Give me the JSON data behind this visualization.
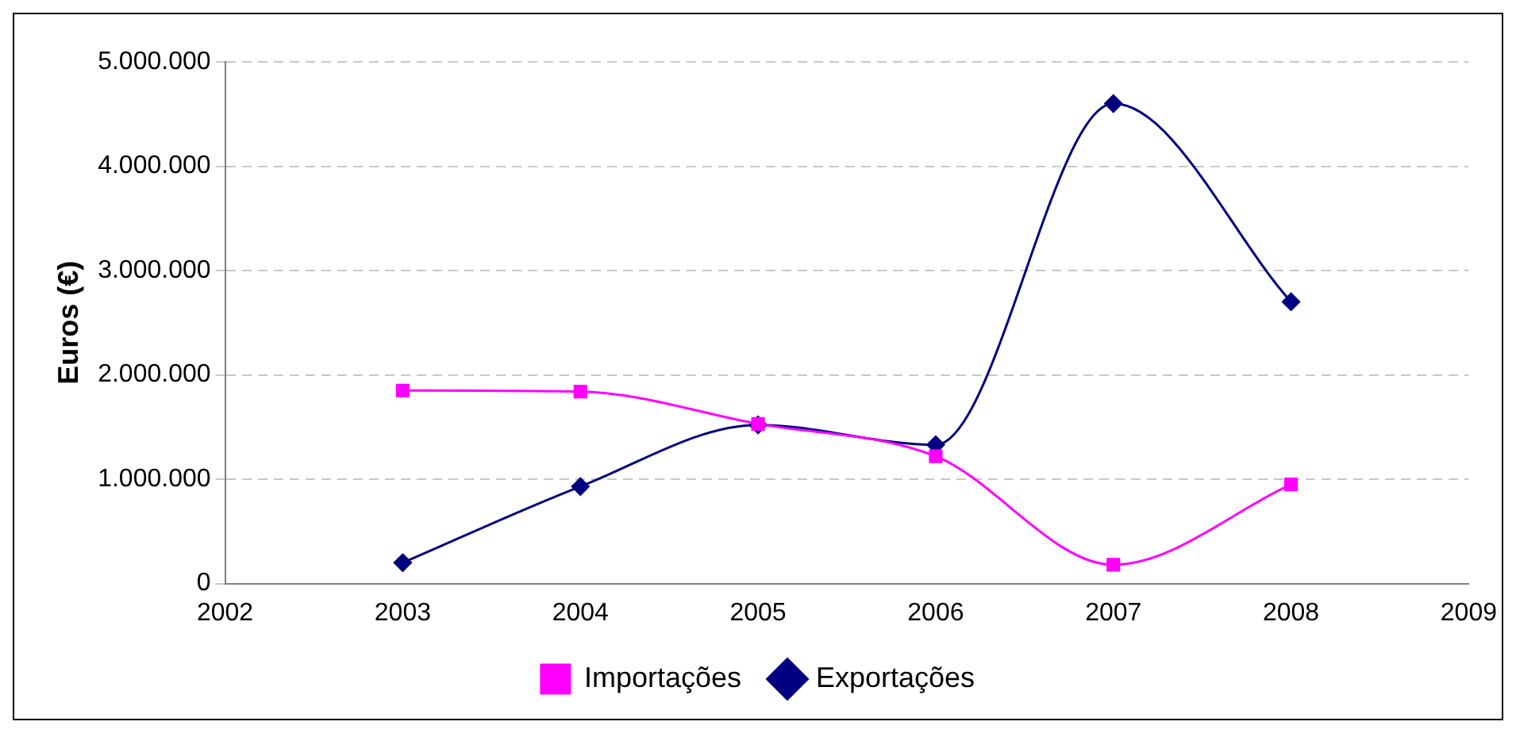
{
  "chart_data": {
    "type": "line",
    "ylabel": "Euros (€)",
    "x": [
      2003,
      2004,
      2005,
      2006,
      2007,
      2008
    ],
    "series": [
      {
        "name": "Exportações",
        "color": "#000080",
        "marker": "diamond",
        "values": [
          200000,
          930000,
          1520000,
          1330000,
          4600000,
          2700000
        ]
      },
      {
        "name": "Importações",
        "color": "#ff00ff",
        "marker": "square",
        "values": [
          1850000,
          1840000,
          1530000,
          1220000,
          180000,
          950000
        ]
      }
    ],
    "xlim": [
      2002,
      2009
    ],
    "xticks": [
      2002,
      2003,
      2004,
      2005,
      2006,
      2007,
      2008,
      2009
    ],
    "ylim": [
      0,
      5000000
    ],
    "yticks": [
      0,
      {
        "value": 1000000,
        "label": "1.000.000"
      },
      {
        "value": 2000000,
        "label": "2.000.000"
      },
      {
        "value": 3000000,
        "label": "3.000.000"
      },
      {
        "value": 4000000,
        "label": "4.000.000"
      },
      {
        "value": 5000000,
        "label": "5.000.000"
      }
    ],
    "grid": "y",
    "legend": "bottom",
    "line_style": "solid"
  }
}
